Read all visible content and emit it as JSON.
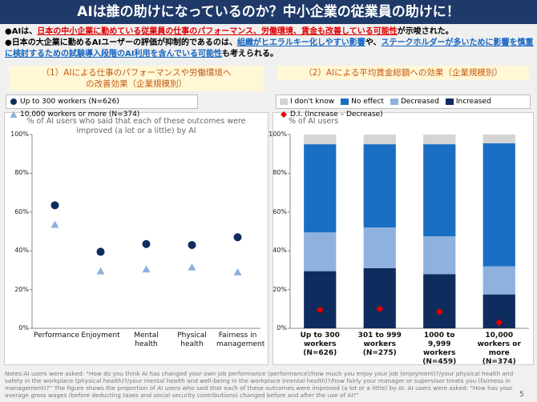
{
  "header": {
    "title": "AIは誰の助けになっているのか？中小企業の従業員の助けに！"
  },
  "bullets": [
    {
      "marker": "●",
      "segments": [
        {
          "text": "AIは、"
        },
        {
          "text": "日本の中小企業に勤めている従業員の仕事のパフォーマンス、労働環境、賃金も改善している可能性",
          "color": "#e00000"
        },
        {
          "text": "が示唆された。"
        }
      ]
    },
    {
      "marker": "●",
      "segments": [
        {
          "text": "日本の大企業に勤めるAIユーザーの評価が抑制的であるのは、"
        },
        {
          "text": "組織がヒエラルキー化しやすい影響",
          "color": "#1565c0"
        },
        {
          "text": "や、"
        },
        {
          "text": "ステークホルダーが多いために影響を慎重に検討するための試験導入段階のAI利用を含んでいる可能性",
          "color": "#1565c0"
        },
        {
          "text": "も考えられる。"
        }
      ]
    }
  ],
  "chart_data": [
    {
      "type": "scatter",
      "title": "（1）AIによる仕事のパフォーマンスや労働環境への改善効果（企業規模別）",
      "subtitle": "% of AI users who said that each of these outcomes were improved (a lot or a little) by AI",
      "categories": [
        "Performance",
        "Enjoyment",
        "Mental health",
        "Physical health",
        "Fairness in management"
      ],
      "series": [
        {
          "name": "Up to 300 workers (N=626)",
          "color": "#0f2c5e",
          "marker": "circle",
          "values": [
            63.5,
            39.5,
            43.5,
            43,
            47
          ]
        },
        {
          "name": "10,000 workers or more (N=374)",
          "color": "#8eb1de",
          "marker": "triangle",
          "values": [
            53.5,
            29.5,
            30.5,
            31.5,
            29
          ]
        }
      ],
      "ylim": [
        0,
        100
      ],
      "yticks": [
        {
          "value": 0,
          "label": "0%"
        },
        {
          "value": 20,
          "label": "20%"
        },
        {
          "value": 40,
          "label": "40%"
        },
        {
          "value": 60,
          "label": "60%"
        },
        {
          "value": 80,
          "label": "80%"
        },
        {
          "value": 100,
          "label": "100%"
        }
      ],
      "grid": false
    },
    {
      "type": "bar",
      "stacked": true,
      "title": "（2）AIによる平均賃金総額への効果（企業規模別）",
      "subtitle": "% of AI users",
      "categories": [
        "Up to 300 workers (N=626)",
        "301 to 999 workers (N=275)",
        "1000 to 9,999 workers (N=459)",
        "10,000 workers or more (N=374)"
      ],
      "series": [
        {
          "name": "Increased",
          "color": "#0f2c5e",
          "values": [
            29.5,
            31,
            28,
            17.5
          ]
        },
        {
          "name": "Decreased",
          "color": "#8eb1de",
          "values": [
            20,
            21,
            19.5,
            14.5
          ]
        },
        {
          "name": "No effect",
          "color": "#1a6fc4",
          "values": [
            45.5,
            43,
            47.5,
            63.5
          ]
        },
        {
          "name": "I don't know",
          "color": "#d4d4d4",
          "values": [
            5,
            5,
            5,
            4.5
          ]
        },
        {
          "name": "D.I. (Increase – Decrease)",
          "color": "#e00000",
          "type": "scatter",
          "marker": "diamond",
          "values": [
            9.5,
            10,
            8.5,
            3
          ]
        }
      ],
      "legend_order": [
        3,
        2,
        1,
        0,
        4
      ],
      "ylim": [
        0,
        100
      ],
      "yticks": [
        {
          "value": 0,
          "label": "0%"
        },
        {
          "value": 20,
          "label": "20%"
        },
        {
          "value": 40,
          "label": "40%"
        },
        {
          "value": 60,
          "label": "60%"
        },
        {
          "value": 80,
          "label": "80%"
        },
        {
          "value": 100,
          "label": "100%"
        }
      ],
      "grid": false
    }
  ],
  "notes": "Notes:AI users were asked: “How do you think AI has changed your own job performance (performance)/how much you enjoy your job (enjoyment)?/your physical health and safety in the workplace (physical health)?/your mental health and well-being in the workplace (mental health)?/how fairly your manager or supervisor treats you (fairness in management)?” The figure shows the proportion of AI users who said that each of these outcomes were improved (a lot or a little) by AI. AI users  were asked: “How has your average gross wages (before deducting taxes and social security contributions) changed before and after the use of AI?”",
  "page_number": "5"
}
